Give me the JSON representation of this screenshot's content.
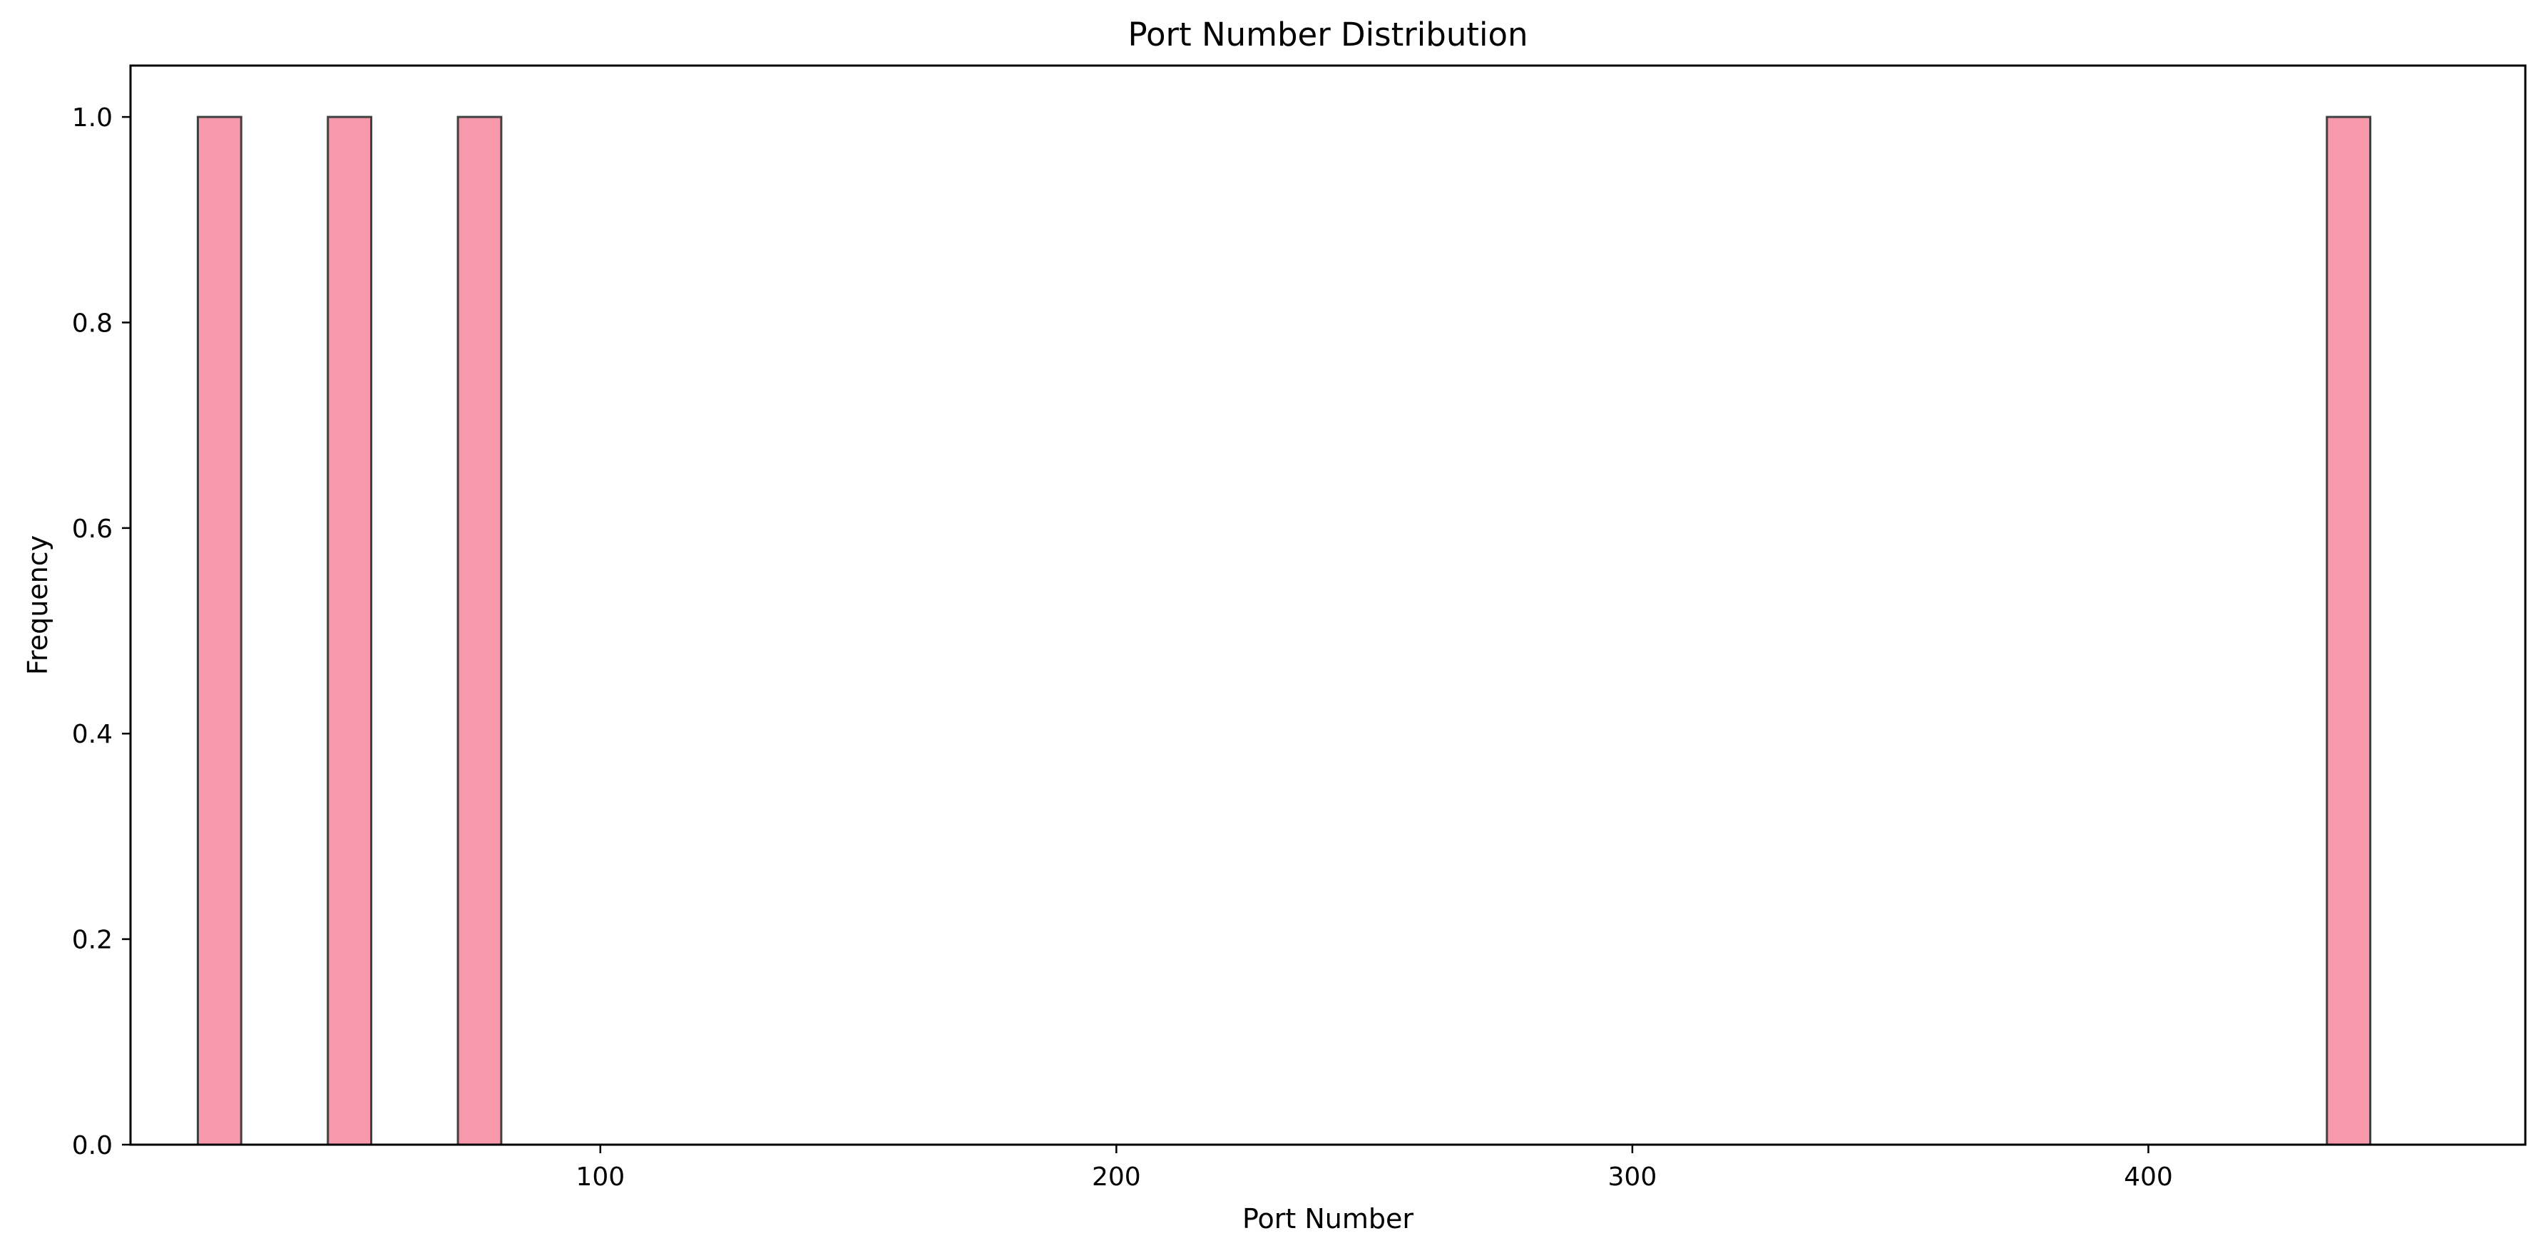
{
  "chart_data": {
    "type": "bar",
    "title": "Port Number Distribution",
    "xlabel": "Port Number",
    "ylabel": "Frequency",
    "xlim": [
      8.95,
      473.05
    ],
    "ylim": [
      0,
      1.05
    ],
    "xticks": [
      100,
      200,
      300,
      400
    ],
    "yticks": [
      0.0,
      0.2,
      0.4,
      0.6,
      0.8,
      1.0
    ],
    "bin_width": 8.4,
    "bars": [
      {
        "x_start": 22.0,
        "x_end": 30.4,
        "value": 1
      },
      {
        "x_start": 47.2,
        "x_end": 55.6,
        "value": 1
      },
      {
        "x_start": 72.4,
        "x_end": 80.8,
        "value": 1
      },
      {
        "x_start": 434.6,
        "x_end": 443.0,
        "value": 1
      }
    ],
    "bar_color": "#f899ab",
    "bar_edge_color": "#404040",
    "grid": false,
    "legend": "none"
  }
}
